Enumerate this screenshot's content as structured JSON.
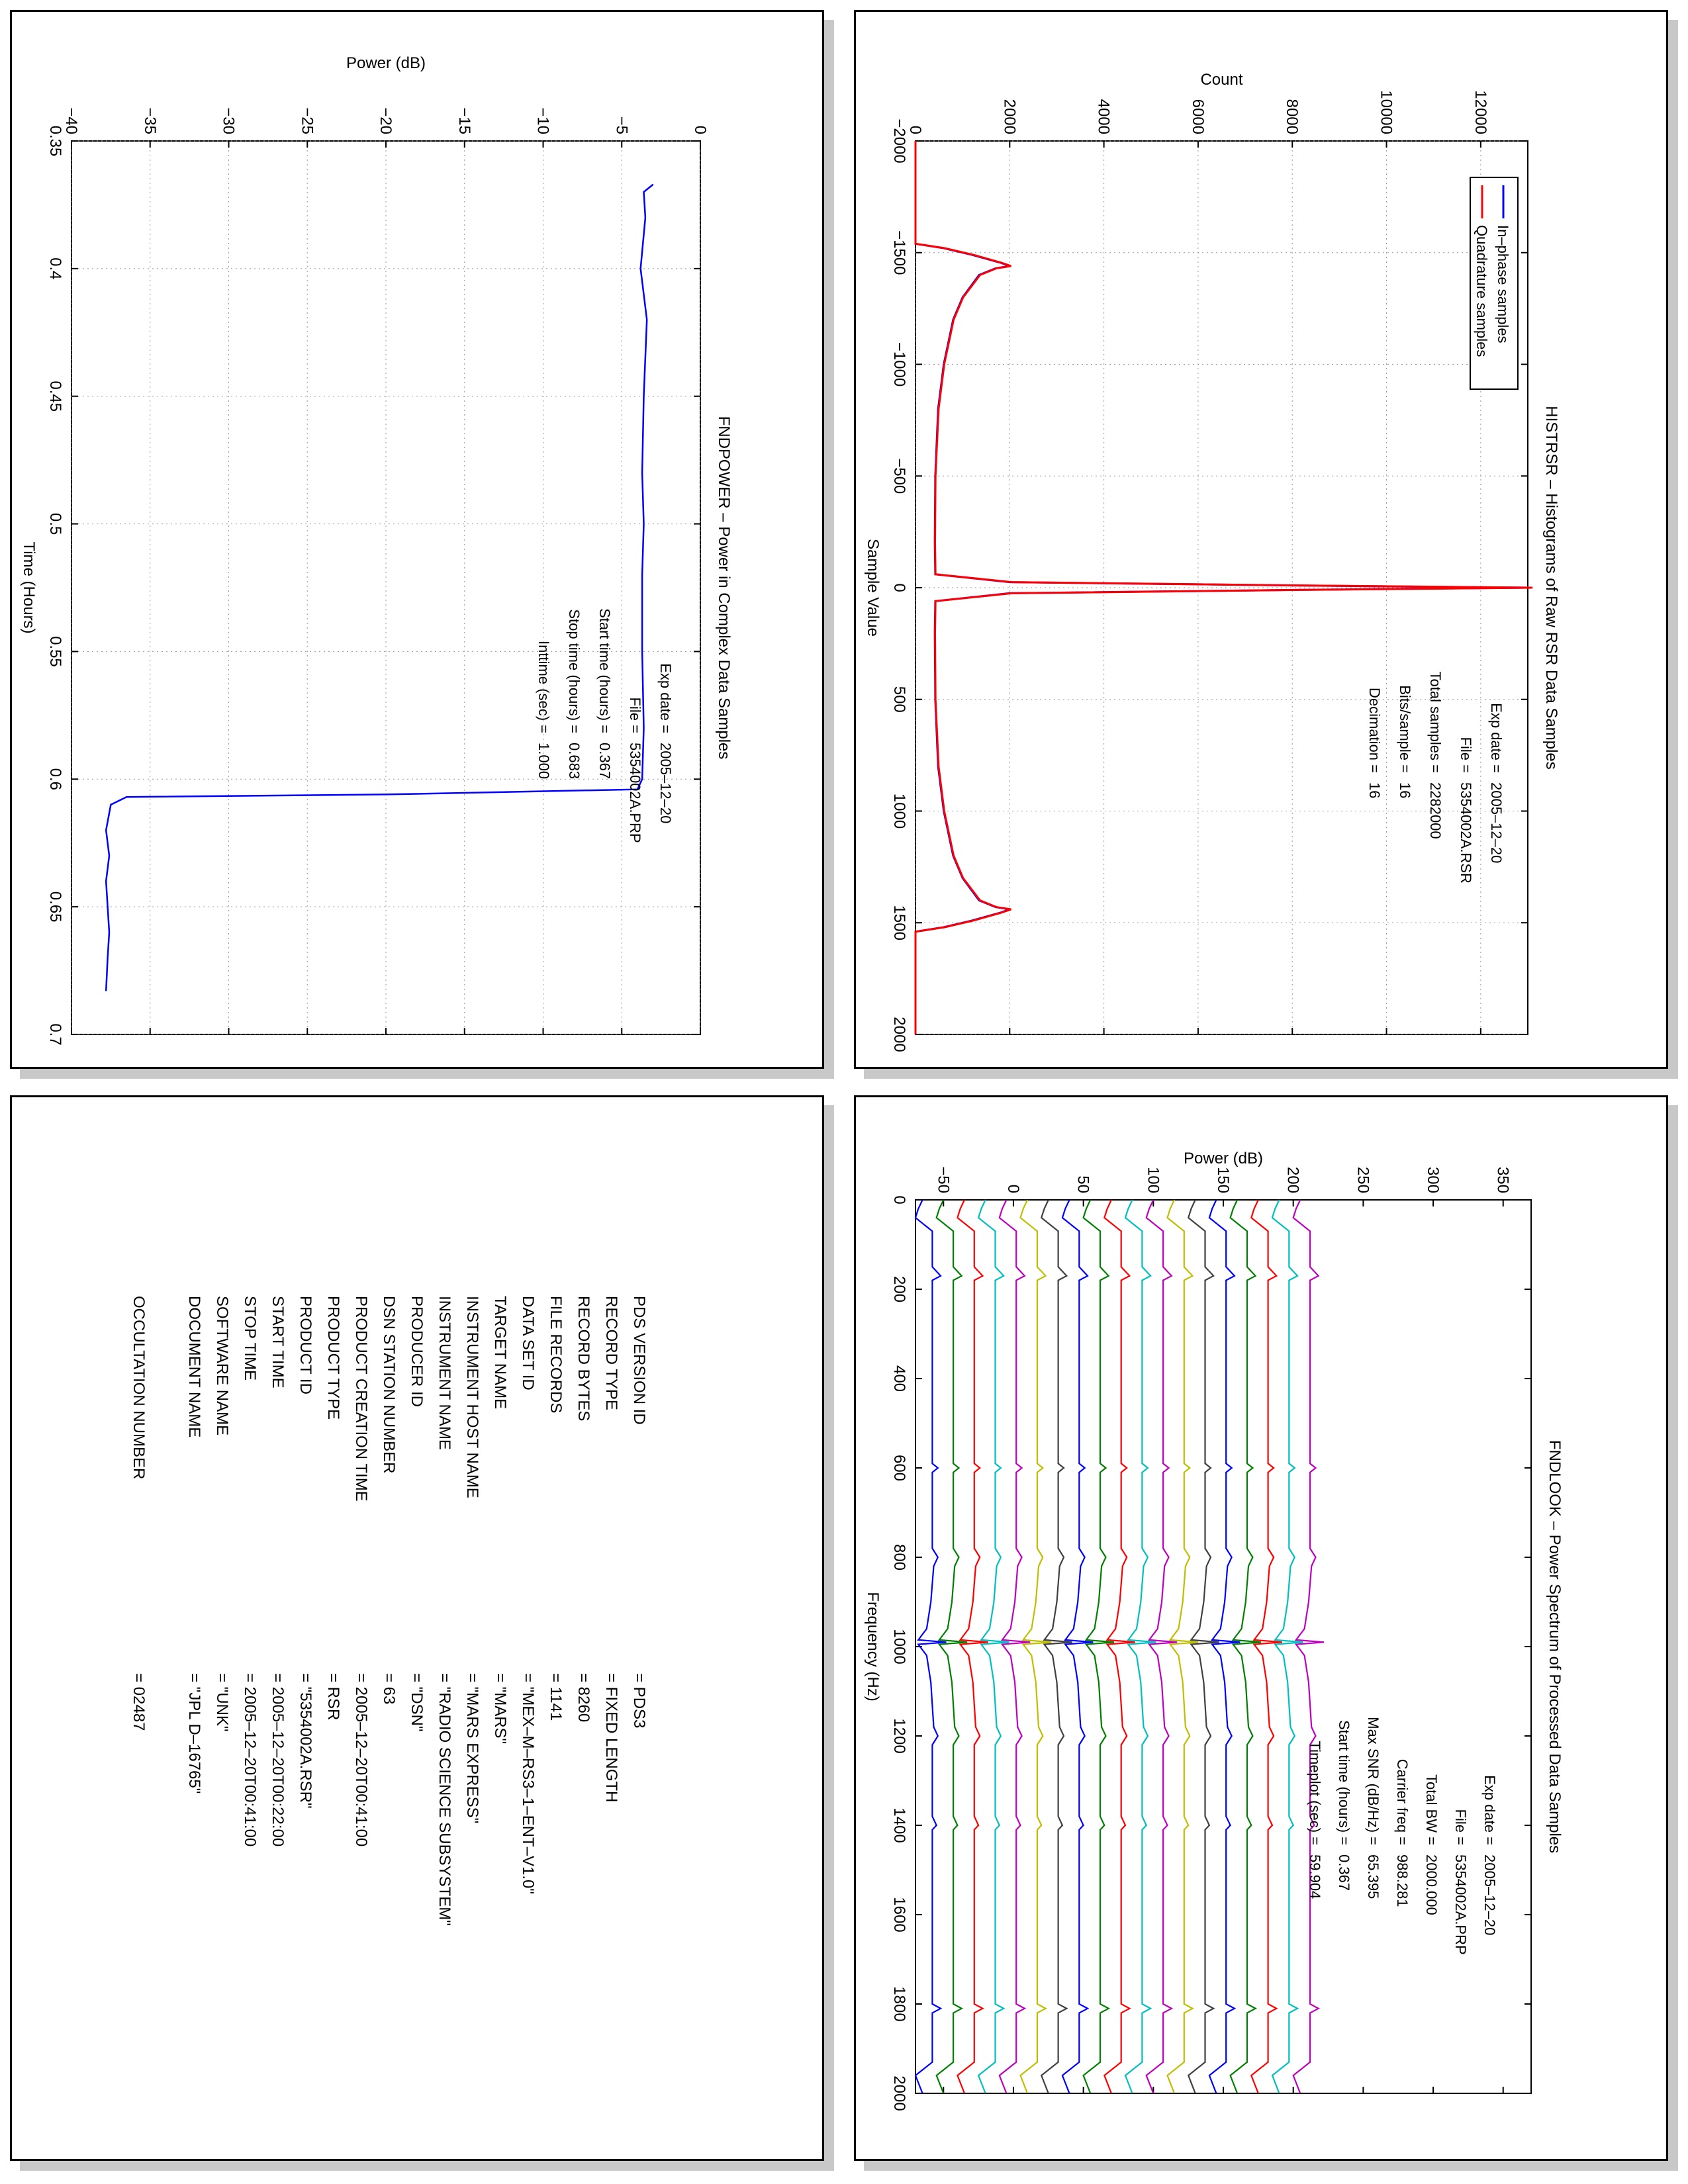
{
  "histogram_panel": {
    "title": "HISTRSR – Histograms of Raw RSR Data Samples",
    "annotations": {
      "lines": [
        {
          "label": "Exp date =",
          "value": "2005–12–20"
        },
        {
          "label": "File =",
          "value": "5354002A.RSR"
        },
        {
          "label": "Total samples =",
          "value": "2282000"
        },
        {
          "label": "Bits/sample =",
          "value": "16"
        },
        {
          "label": "Decimation =",
          "value": "16"
        }
      ]
    },
    "colors": {
      "in_phase": "#0000ff",
      "quadrature": "#ff0000"
    }
  },
  "power_panel": {
    "title": "FNDPOWER – Power in Complex Data Samples",
    "annotations": {
      "lines": [
        {
          "label": "Exp date =",
          "value": "2005–12–20"
        },
        {
          "label": "File =",
          "value": "5354002A.PRP"
        },
        {
          "label": "Start time (hours) =",
          "value": "0.367"
        },
        {
          "label": "Stop time (hours) =",
          "value": "0.683"
        },
        {
          "label": "Inttime (sec) =",
          "value": "1.000"
        }
      ]
    },
    "colors": {
      "line": "#0000ff"
    }
  },
  "spectrum_panel": {
    "title": "FNDLOOK – Power Spectrum of Processed Data Samples",
    "annotations": {
      "lines": [
        {
          "label": "Exp date =",
          "value": "2005–12–20"
        },
        {
          "label": "File =",
          "value": "5354002A.PRP"
        },
        {
          "label": "Total BW =",
          "value": "2000.000"
        },
        {
          "label": "Carrier freq =",
          "value": "988.281"
        },
        {
          "label": "Max SNR (dB/Hz) =",
          "value": "65.395"
        },
        {
          "label": "Start time (hours) =",
          "value": "0.367"
        },
        {
          "label": "Timeplot (sec) =",
          "value": "59.904"
        }
      ]
    },
    "trace_colors": [
      "#0000ff",
      "#008000",
      "#ff0000",
      "#00bfbf",
      "#bf00bf",
      "#bfbf00",
      "#404040",
      "#0000ff",
      "#008000",
      "#ff0000",
      "#00bfbf",
      "#bf00bf",
      "#bfbf00",
      "#404040",
      "#0000ff",
      "#008000",
      "#ff0000",
      "#00bfbf",
      "#bf00bf"
    ]
  },
  "label_panel": {
    "rows": [
      {
        "key": "PDS VERSION ID",
        "value": "= PDS3"
      },
      {
        "key": "RECORD TYPE",
        "value": "= FIXED LENGTH"
      },
      {
        "key": "RECORD BYTES",
        "value": "= 8260"
      },
      {
        "key": "FILE RECORDS",
        "value": "= 1141"
      },
      {
        "key": "DATA SET ID",
        "value": "= \"MEX–M–RS3–1–ENT–V1.0\""
      },
      {
        "key": "TARGET NAME",
        "value": "= \"MARS\""
      },
      {
        "key": "INSTRUMENT HOST NAME",
        "value": "= \"MARS EXPRESS\""
      },
      {
        "key": "INSTRUMENT NAME",
        "value": "= \"RADIO SCIENCE SUBSYSTEM\""
      },
      {
        "key": "PRODUCER ID",
        "value": "= \"DSN\""
      },
      {
        "key": "DSN STATION NUMBER",
        "value": "= 63"
      },
      {
        "key": "PRODUCT CREATION TIME",
        "value": "= 2005–12–20T00:41:00"
      },
      {
        "key": "PRODUCT TYPE",
        "value": "= RSR"
      },
      {
        "key": "PRODUCT ID",
        "value": "= \"5354002A.RSR\""
      },
      {
        "key": "START TIME",
        "value": "= 2005–12–20T00:22:00"
      },
      {
        "key": "STOP TIME",
        "value": "= 2005–12–20T00:41:00"
      },
      {
        "key": "SOFTWARE NAME",
        "value": "= \"UNK\""
      },
      {
        "key": "DOCUMENT NAME",
        "value": "= \"JPL D–16765\""
      },
      {
        "key": "",
        "value": ""
      },
      {
        "key": "OCCULTATION NUMBER",
        "value": "= 02487"
      }
    ]
  },
  "chart_data": [
    {
      "type": "line",
      "title": "HISTRSR – Histograms of Raw RSR Data Samples",
      "xlabel": "Sample Value",
      "ylabel": "Count",
      "xlim": [
        -2000,
        2000
      ],
      "ylim": [
        0,
        13000
      ],
      "xticks": [
        "-2000",
        "-1500",
        "-1000",
        "-500",
        "0",
        "500",
        "1000",
        "1500",
        "2000"
      ],
      "yticks": [
        "0",
        "2000",
        "4000",
        "6000",
        "8000",
        "10000",
        "12000"
      ],
      "grid": true,
      "legend": {
        "placement": "top-right",
        "entries": [
          "In–phase samples",
          "Quadrature samples"
        ]
      },
      "series": [
        {
          "name": "In–phase samples",
          "points": [
            [
              -2000,
              0
            ],
            [
              -1540,
              0
            ],
            [
              -1520,
              600
            ],
            [
              -1490,
              1200
            ],
            [
              -1455,
              1800
            ],
            [
              -1440,
              2000
            ],
            [
              -1430,
              1700
            ],
            [
              -1400,
              1350
            ],
            [
              -1300,
              1000
            ],
            [
              -1200,
              800
            ],
            [
              -1000,
              600
            ],
            [
              -800,
              480
            ],
            [
              -500,
              420
            ],
            [
              -200,
              410
            ],
            [
              -60,
              420
            ],
            [
              -25,
              2000
            ],
            [
              -10,
              8000
            ],
            [
              0,
              13000
            ],
            [
              10,
              8000
            ],
            [
              25,
              2000
            ],
            [
              60,
              420
            ],
            [
              200,
              410
            ],
            [
              500,
              420
            ],
            [
              800,
              480
            ],
            [
              1000,
              600
            ],
            [
              1200,
              800
            ],
            [
              1300,
              1000
            ],
            [
              1400,
              1350
            ],
            [
              1430,
              1700
            ],
            [
              1440,
              2000
            ],
            [
              1455,
              1800
            ],
            [
              1490,
              1200
            ],
            [
              1520,
              600
            ],
            [
              1540,
              0
            ],
            [
              2000,
              0
            ]
          ]
        },
        {
          "name": "Quadrature samples",
          "points": [
            [
              -2000,
              0
            ],
            [
              -1540,
              0
            ],
            [
              -1520,
              620
            ],
            [
              -1490,
              1230
            ],
            [
              -1455,
              1820
            ],
            [
              -1440,
              2030
            ],
            [
              -1430,
              1720
            ],
            [
              -1400,
              1370
            ],
            [
              -1300,
              1010
            ],
            [
              -1200,
              810
            ],
            [
              -1000,
              610
            ],
            [
              -800,
              490
            ],
            [
              -500,
              425
            ],
            [
              -200,
              415
            ],
            [
              -60,
              425
            ],
            [
              -25,
              2050
            ],
            [
              -10,
              8100
            ],
            [
              0,
              13100
            ],
            [
              10,
              8100
            ],
            [
              25,
              2050
            ],
            [
              60,
              425
            ],
            [
              200,
              415
            ],
            [
              500,
              425
            ],
            [
              800,
              490
            ],
            [
              1000,
              610
            ],
            [
              1200,
              810
            ],
            [
              1300,
              1010
            ],
            [
              1400,
              1370
            ],
            [
              1430,
              1720
            ],
            [
              1440,
              2030
            ],
            [
              1455,
              1820
            ],
            [
              1490,
              1230
            ],
            [
              1520,
              620
            ],
            [
              1540,
              0
            ],
            [
              2000,
              0
            ]
          ]
        }
      ]
    },
    {
      "type": "line",
      "title": "FNDPOWER – Power in Complex Data Samples",
      "xlabel": "Time (Hours)",
      "ylabel": "Power (dB)",
      "xlim": [
        0.35,
        0.7
      ],
      "ylim": [
        -40,
        0
      ],
      "xticks": [
        "0.35",
        "0.4",
        "0.45",
        "0.5",
        "0.55",
        "0.6",
        "0.65",
        "0.7"
      ],
      "yticks": [
        "-40",
        "-35",
        "-30",
        "-25",
        "-20",
        "-15",
        "-10",
        "-5",
        "0"
      ],
      "grid": true,
      "series": [
        {
          "name": "",
          "points": [
            [
              0.367,
              -3.0
            ],
            [
              0.37,
              -3.6
            ],
            [
              0.38,
              -3.5
            ],
            [
              0.4,
              -3.8
            ],
            [
              0.42,
              -3.4
            ],
            [
              0.45,
              -3.6
            ],
            [
              0.48,
              -3.7
            ],
            [
              0.5,
              -3.6
            ],
            [
              0.52,
              -3.7
            ],
            [
              0.55,
              -3.7
            ],
            [
              0.58,
              -3.6
            ],
            [
              0.6,
              -3.7
            ],
            [
              0.604,
              -4.0
            ],
            [
              0.606,
              -20
            ],
            [
              0.607,
              -36.5
            ],
            [
              0.61,
              -37.5
            ],
            [
              0.62,
              -37.8
            ],
            [
              0.63,
              -37.6
            ],
            [
              0.64,
              -37.8
            ],
            [
              0.65,
              -37.7
            ],
            [
              0.66,
              -37.6
            ],
            [
              0.67,
              -37.7
            ],
            [
              0.683,
              -37.8
            ]
          ]
        }
      ]
    },
    {
      "type": "line",
      "title": "FNDLOOK – Power Spectrum of Processed Data Samples",
      "xlabel": "Frequency (Hz)",
      "ylabel": "Power (dB)",
      "xlim": [
        0,
        2000
      ],
      "ylim": [
        -70,
        370
      ],
      "xticks": [
        "0",
        "200",
        "400",
        "600",
        "800",
        "1000",
        "1200",
        "1400",
        "1600",
        "1800",
        "2000"
      ],
      "yticks": [
        "-50",
        "0",
        "50",
        "100",
        "150",
        "200",
        "250",
        "300",
        "350"
      ],
      "grid": false,
      "series_offsets": [
        -60,
        -45,
        -30,
        -15,
        0,
        15,
        30,
        45,
        60,
        75,
        90,
        105,
        120,
        135,
        150,
        165,
        180,
        195,
        210
      ],
      "series_shape_points": [
        [
          0,
          -5
        ],
        [
          20,
          -8
        ],
        [
          40,
          -10
        ],
        [
          70,
          2
        ],
        [
          150,
          2
        ],
        [
          170,
          8
        ],
        [
          180,
          2
        ],
        [
          500,
          2
        ],
        [
          590,
          2
        ],
        [
          600,
          6
        ],
        [
          610,
          2
        ],
        [
          780,
          2
        ],
        [
          800,
          6
        ],
        [
          820,
          3
        ],
        [
          900,
          1
        ],
        [
          960,
          -2
        ],
        [
          985,
          -8
        ],
        [
          990,
          12
        ],
        [
          995,
          -8
        ],
        [
          1020,
          -2
        ],
        [
          1080,
          1
        ],
        [
          1180,
          3
        ],
        [
          1200,
          6
        ],
        [
          1220,
          2
        ],
        [
          1380,
          2
        ],
        [
          1400,
          5
        ],
        [
          1410,
          2
        ],
        [
          1800,
          2
        ],
        [
          1810,
          8
        ],
        [
          1820,
          2
        ],
        [
          1930,
          2
        ],
        [
          1960,
          -10
        ],
        [
          2000,
          -5
        ]
      ],
      "series_note_texts": []
    }
  ]
}
